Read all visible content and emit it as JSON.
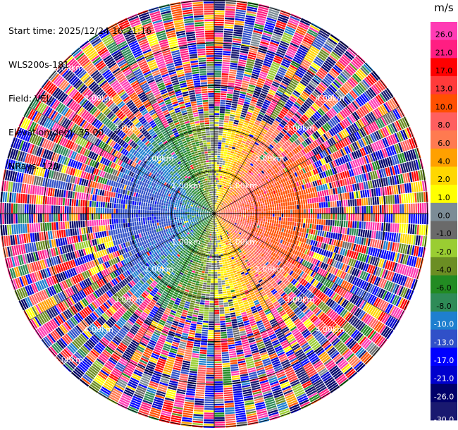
{
  "header": {
    "start_time": "Start time: 2025/12/24 16:21:16",
    "instrument": "WLS200s-181",
    "field": "Field: VEL",
    "elevation": "Elevation(deg): 35.00",
    "nrays": "NRays: 120"
  },
  "chart_data": {
    "type": "heatmap",
    "projection": "polar-ppi",
    "field": "VEL",
    "units": "m/s",
    "n_rays": 120,
    "range_rings_km": [
      1,
      2,
      3,
      4,
      5
    ],
    "ring_labels": [
      "1.00km",
      "2.00km",
      "3.00km",
      "4.00km",
      "5.00km"
    ],
    "max_range_km": 5.05,
    "grid": true,
    "wind_model": {
      "approach_side": "west",
      "recede_side": "east",
      "peak_radial_velocity": 12,
      "valid_range_km": 2.4
    },
    "colorbar": {
      "label": "m/s",
      "ticks": [
        "26.0",
        "21.0",
        "17.0",
        "13.0",
        "10.0",
        "8.0",
        "6.0",
        "4.0",
        "2.0",
        "1.0",
        "0.0",
        "-1.0",
        "-2.0",
        "-4.0",
        "-6.0",
        "-8.0",
        "-10.0",
        "-13.0",
        "-17.0",
        "-21.0",
        "-26.0",
        "-30.0"
      ],
      "bins": [
        {
          "min": 26,
          "max": 30,
          "color": "#FF3CB4"
        },
        {
          "min": 21,
          "max": 26,
          "color": "#FF1E82"
        },
        {
          "min": 17,
          "max": 21,
          "color": "#FF0000"
        },
        {
          "min": 13,
          "max": 17,
          "color": "#FF3A3A"
        },
        {
          "min": 10,
          "max": 13,
          "color": "#FF5000"
        },
        {
          "min": 8,
          "max": 10,
          "color": "#FF5F5F"
        },
        {
          "min": 6,
          "max": 8,
          "color": "#FF7A50"
        },
        {
          "min": 4,
          "max": 6,
          "color": "#FFA000"
        },
        {
          "min": 2,
          "max": 4,
          "color": "#FFD700"
        },
        {
          "min": 1,
          "max": 2,
          "color": "#FFFF00"
        },
        {
          "min": 0,
          "max": 1,
          "color": "#7C8C96"
        },
        {
          "min": -1,
          "max": 0,
          "color": "#6A6A6A"
        },
        {
          "min": -2,
          "max": -1,
          "color": "#9ACD32"
        },
        {
          "min": -4,
          "max": -2,
          "color": "#6B8E23"
        },
        {
          "min": -6,
          "max": -4,
          "color": "#228B22"
        },
        {
          "min": -8,
          "max": -6,
          "color": "#2E8B57"
        },
        {
          "min": -10,
          "max": -8,
          "color": "#1E7FCF"
        },
        {
          "min": -13,
          "max": -10,
          "color": "#3050C8"
        },
        {
          "min": -17,
          "max": -13,
          "color": "#0000FF"
        },
        {
          "min": -21,
          "max": -17,
          "color": "#0000CD"
        },
        {
          "min": -26,
          "max": -21,
          "color": "#00006A"
        },
        {
          "min": -30,
          "max": -26,
          "color": "#191970"
        }
      ]
    }
  }
}
